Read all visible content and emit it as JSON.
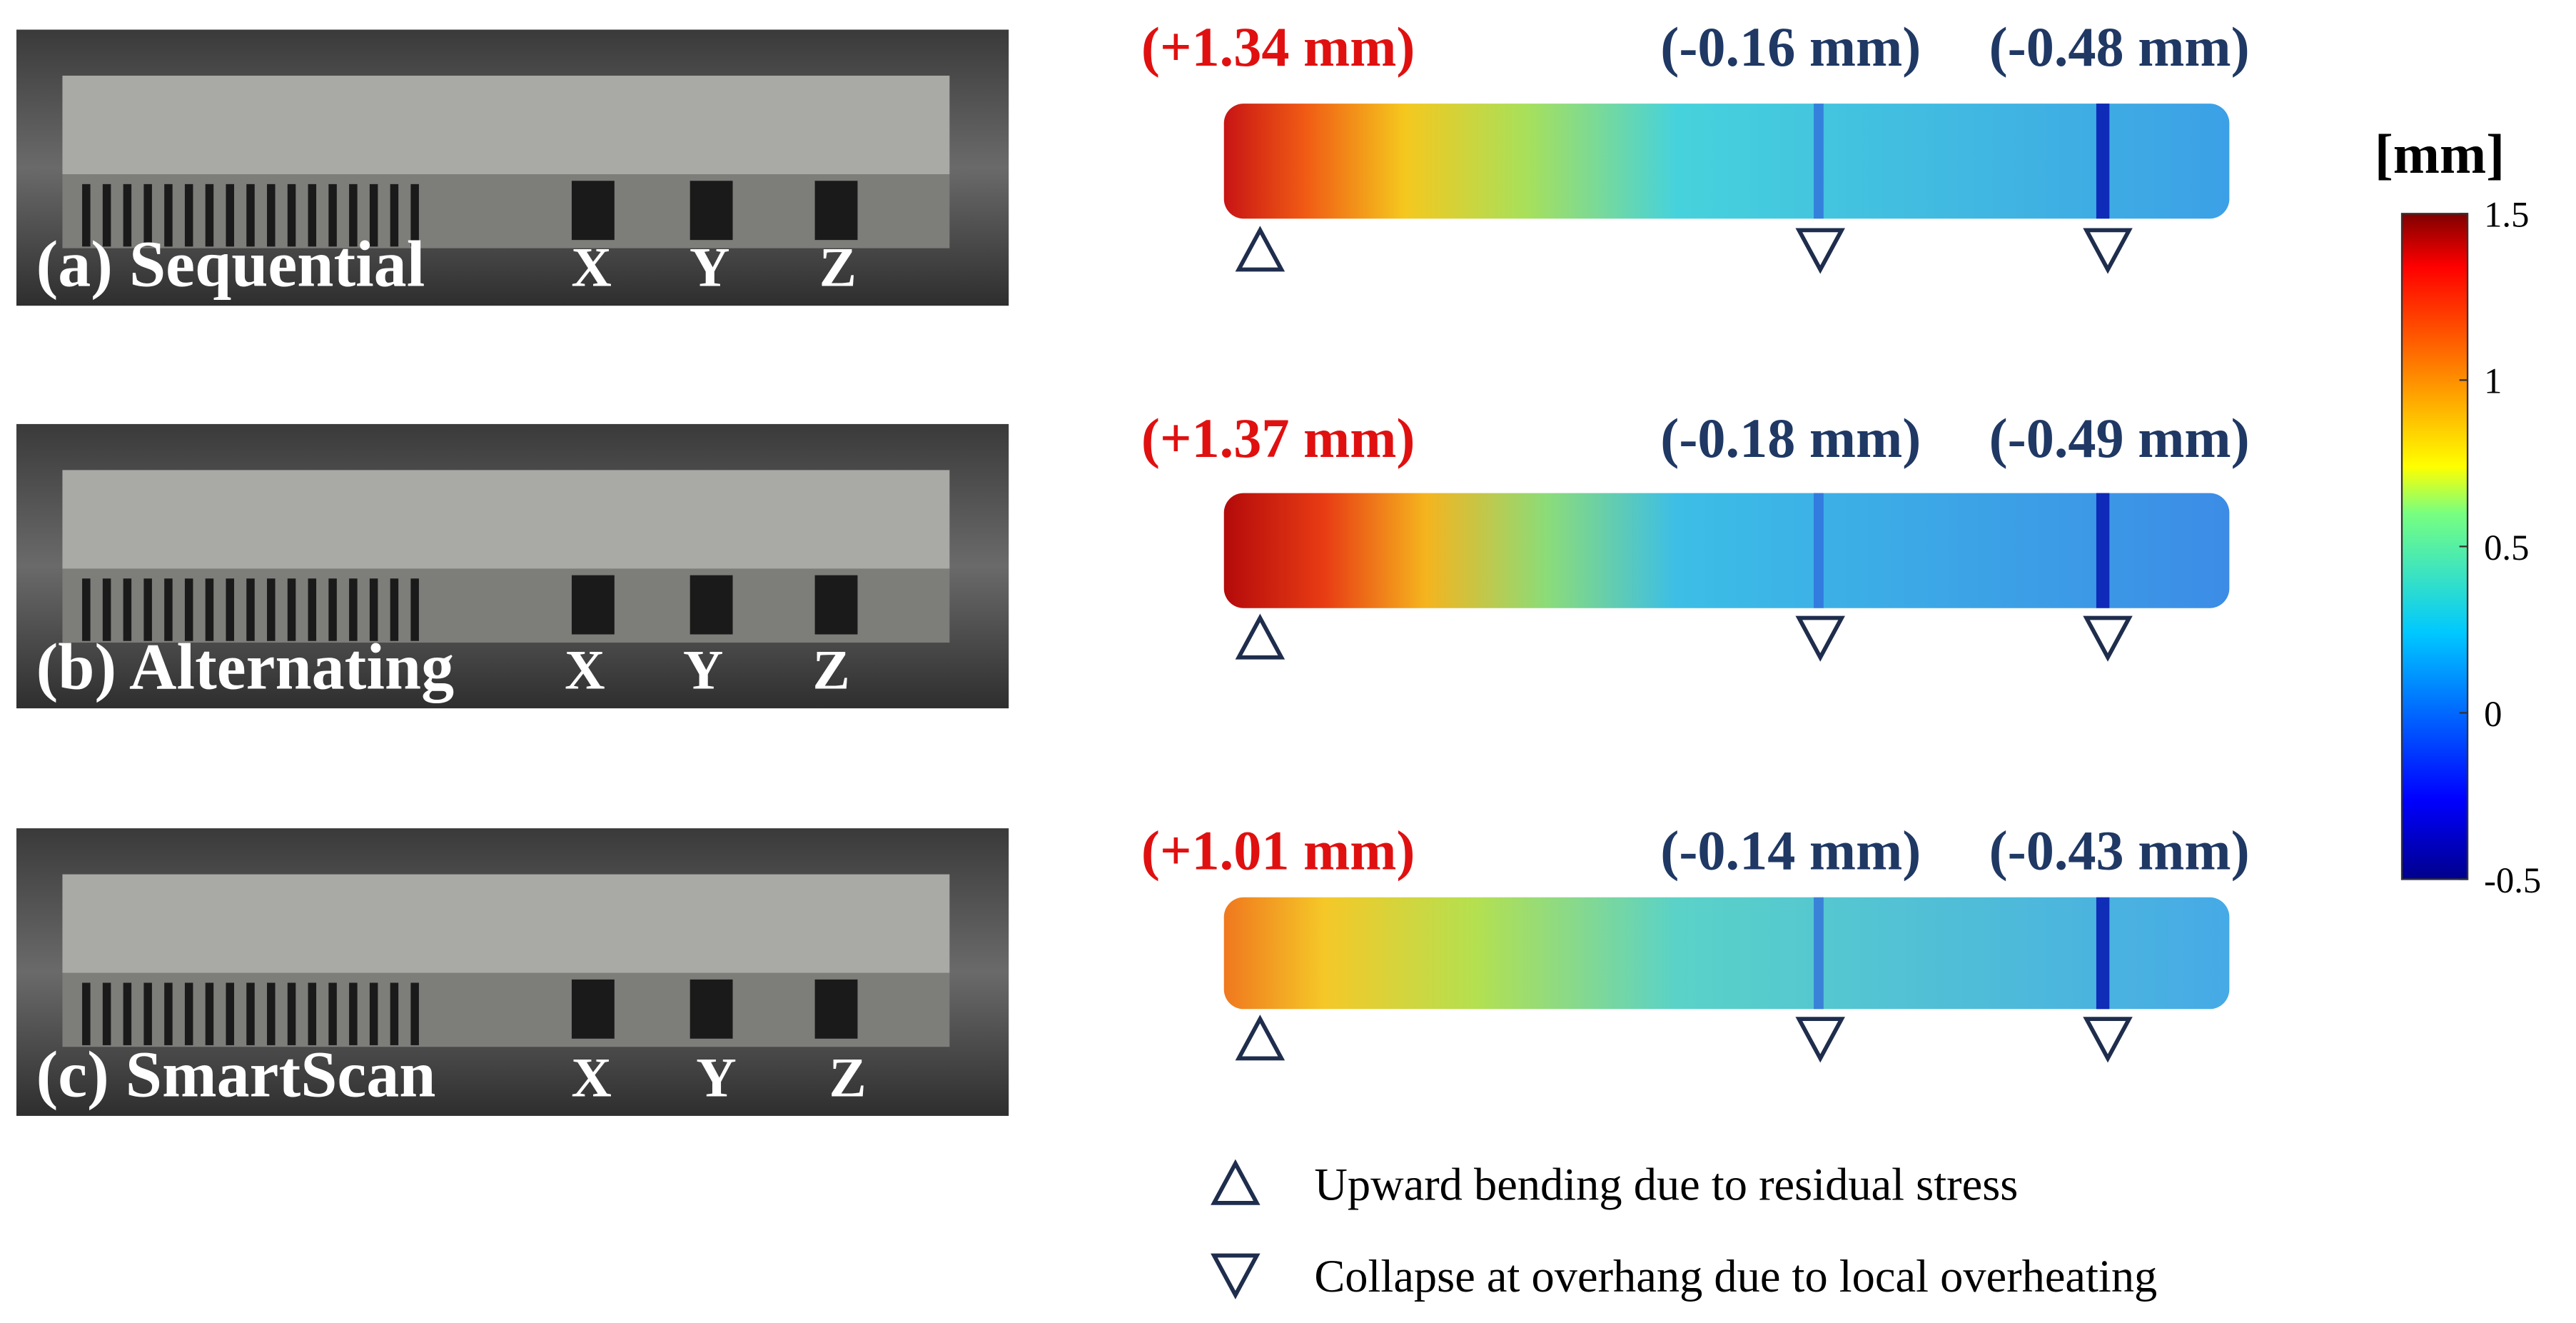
{
  "panels": [
    {
      "label": "(a) Sequential",
      "axes": [
        "X",
        "Y",
        "Z"
      ],
      "annotations": [
        "(+1.34 mm)",
        "(-0.16 mm)",
        "(-0.48 mm)"
      ]
    },
    {
      "label": "(b) Alternating",
      "axes": [
        "X",
        "Y",
        "Z"
      ],
      "annotations": [
        "(+1.37 mm)",
        "(-0.18 mm)",
        "(-0.49 mm)"
      ]
    },
    {
      "label": "(c) SmartScan",
      "axes": [
        "X",
        "Y",
        "Z"
      ],
      "annotations": [
        "(+1.01 mm)",
        "(-0.14 mm)",
        "(-0.43 mm)"
      ]
    }
  ],
  "colorbar": {
    "title": "[mm]",
    "range": [
      -0.5,
      1.5
    ],
    "ticks": [
      1.5,
      1,
      0.5,
      0,
      -0.5
    ]
  },
  "legend": [
    "Upward bending due to residual stress",
    "Collapse at overhang due to local overheating"
  ]
}
